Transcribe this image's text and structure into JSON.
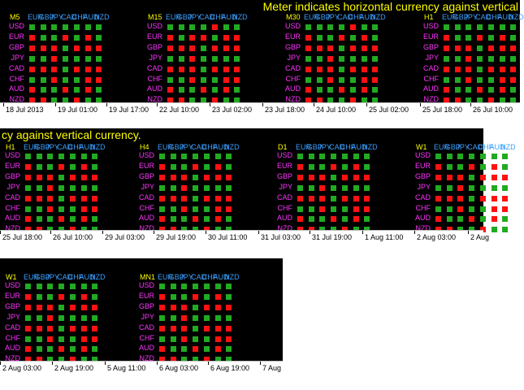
{
  "colors": {
    "up": "#22aa22",
    "down": "#ff1111",
    "timeframe": "#ffff00",
    "header": "#3aa0ff",
    "row_label": "#ff33ff",
    "title": "#ffff00"
  },
  "currencies": [
    "USD",
    "EUR",
    "GBP",
    "JPY",
    "CAD",
    "CHF",
    "AUD",
    "NZD"
  ],
  "header_text": [
    "EUR",
    "GBP",
    "JPY",
    "CAD",
    "CHF",
    "AUD",
    "NZD"
  ],
  "panels": [
    {
      "title": "Meter indicates horizontal currency against vertical",
      "blocks": [
        {
          "tf": "M5",
          "grid": [
            "+++++++",
            "-++-+-+",
            "---+---",
            "++-++++",
            "---+---",
            "++-++--",
            "-++-+-+",
            "--++-++"
          ]
        },
        {
          "tf": "M15",
          "grid": [
            "++++-++",
            "-+--+--",
            "---+---",
            "++-++++",
            "---+---",
            "++-++--",
            "-++-+-+",
            "--++-++"
          ]
        },
        {
          "tf": "M30",
          "grid": [
            "++++-++",
            "-++-+-+",
            "---+---",
            "++-++++",
            "---+---",
            "++-++--",
            "-++-+-+",
            "--++-++"
          ]
        },
        {
          "tf": "H1",
          "grid": [
            "+++++++",
            "-++-+-+",
            "---+---",
            "++-++++",
            "---+---",
            "++-++--",
            "-++-+-+",
            "--++-++"
          ]
        }
      ],
      "axis": [
        "18 Jul 2013",
        "19 Jul 01:00",
        "19 Jul 17:00",
        "22 Jul 10:00",
        "23 Jul 02:00",
        "23 Jul 18:00",
        "24 Jul 10:00",
        "25 Jul 02:00",
        "25 Jul 18:00",
        "26 Jul 10:00"
      ]
    },
    {
      "title": "cy against vertical currency.",
      "blocks": [
        {
          "tf": "H1",
          "grid": [
            "+++++++",
            "-++-+-+",
            "---+---",
            "++-++++",
            "---+---",
            "++-++--",
            "-++-+-+",
            "--++-++"
          ]
        },
        {
          "tf": "H4",
          "grid": [
            "+++++++",
            "-++-+-+",
            "---+---",
            "++-++++",
            "---+---",
            "++-++--",
            "-++-+-+",
            "--++-++"
          ]
        },
        {
          "tf": "D1",
          "grid": [
            "+++++++",
            "-++-+-+",
            "---+---",
            "++-++++",
            "---+---",
            "++-++--",
            "-++-+-+",
            "--++-++"
          ]
        },
        {
          "tf": "W1",
          "grid": [
            "+++++++",
            "-++-+-+",
            "---+---",
            "++-++++",
            "---+---",
            "++-++--",
            "-++-+-+",
            "--++-++"
          ]
        }
      ],
      "axis": [
        "25 Jul 18:00",
        "26 Jul 10:00",
        "29 Jul 03:00",
        "29 Jul 19:00",
        "30 Jul 11:00",
        "31 Jul 03:00",
        "31 Jul 19:00",
        "1 Aug 11:00",
        "2 Aug 03:00",
        "2 Aug"
      ]
    },
    {
      "title": "",
      "blocks": [
        {
          "tf": "W1",
          "grid": [
            "+++++++",
            "-++-+-+",
            "---+---",
            "++-++++",
            "---+---",
            "++-++--",
            "-++-+-+",
            "--++-++"
          ]
        },
        {
          "tf": "MN1",
          "grid": [
            "+++++++",
            "-++-+-+",
            "---+---",
            "++-++++",
            "---+---",
            "++-++--",
            "-++-+-+",
            "--++-++"
          ]
        }
      ],
      "axis": [
        "2 Aug 03:00",
        "2 Aug 19:00",
        "5 Aug 11:00",
        "6 Aug 03:00",
        "6 Aug 19:00",
        "7 Aug"
      ]
    }
  ]
}
